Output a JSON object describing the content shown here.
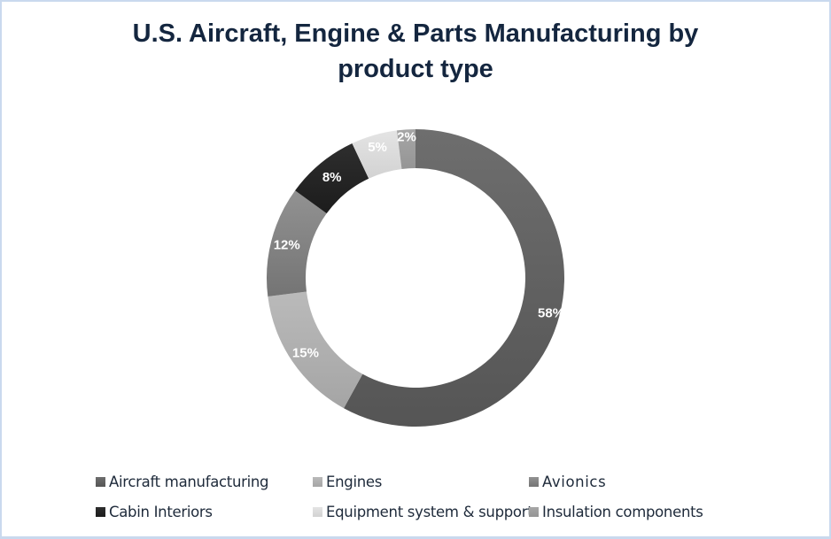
{
  "chart_data": {
    "type": "pie",
    "subtype": "donut",
    "title": "U.S. Aircraft, Engine & Parts Manufacturing by product type",
    "title_lines": [
      "U.S. Aircraft, Engine & Parts Manufacturing by",
      "product type"
    ],
    "categories": [
      "Aircraft manufacturing",
      "Engines",
      "Avionics",
      "Cabin Interiors",
      "Equipment system & support",
      "Insulation components"
    ],
    "values": [
      58,
      15,
      12,
      8,
      5,
      2
    ],
    "labels": [
      "58%",
      "15%",
      "12%",
      "8%",
      "5%",
      "2%"
    ],
    "colors": [
      "#5e5e5e",
      "#acacac",
      "#7c7c7c",
      "#232323",
      "#dadada",
      "#9d9d9d"
    ],
    "legend_position": "bottom",
    "start_angle_deg": 0,
    "direction": "clockwise"
  },
  "legend": {
    "items": [
      {
        "label": "Aircraft manufacturing",
        "color": "#5e5e5e"
      },
      {
        "label": "Engines",
        "color": "#acacac"
      },
      {
        "label": "Avionics",
        "color": "#7c7c7c"
      },
      {
        "label": "Cabin Interiors",
        "color": "#232323"
      },
      {
        "label": "Equipment system & support",
        "color": "#dadada"
      },
      {
        "label": "Insulation components",
        "color": "#9d9d9d"
      }
    ]
  }
}
